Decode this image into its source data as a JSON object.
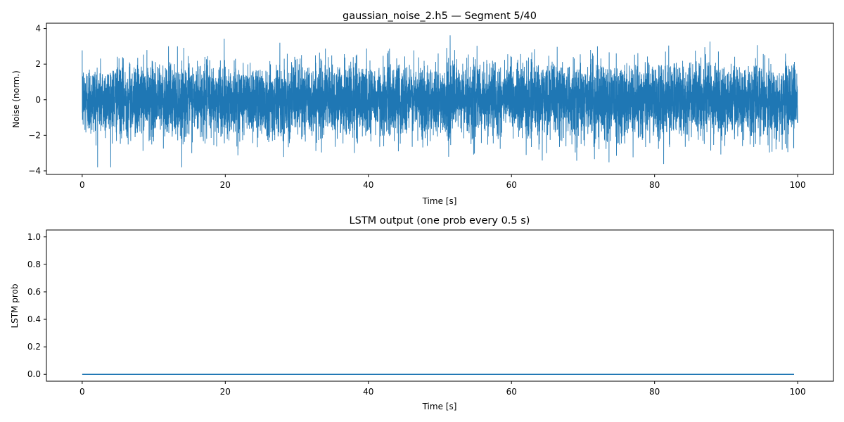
{
  "chart_data": [
    {
      "type": "line",
      "title": "gaussian_noise_2.h5 — Segment 5/40",
      "xlabel": "Time [s]",
      "ylabel": "Noise (norm.)",
      "xlim": [
        -5,
        105
      ],
      "ylim": [
        -4.2,
        4.3
      ],
      "xticks": [
        0,
        20,
        40,
        60,
        80,
        100
      ],
      "yticks": [
        -4,
        -2,
        0,
        2,
        4
      ],
      "grid": false,
      "series": [
        {
          "color": "#1f77b4",
          "description_of_values": "dense gaussian noise signal, roughly zero-mean, unit variance, sampled continuously from 0 to 100 s",
          "x_range": [
            0,
            100
          ],
          "mean": 0,
          "std": 1.0,
          "approx_max": 3.9,
          "approx_min": -3.8
        }
      ]
    },
    {
      "type": "line",
      "title": "LSTM output (one prob every 0.5 s)",
      "xlabel": "Time [s]",
      "ylabel": "LSTM prob",
      "xlim": [
        -5,
        105
      ],
      "ylim": [
        -0.05,
        1.05
      ],
      "xticks": [
        0,
        20,
        40,
        60,
        80,
        100
      ],
      "yticks": [
        0.0,
        0.2,
        0.4,
        0.6,
        0.8,
        1.0
      ],
      "grid": false,
      "series": [
        {
          "color": "#1f77b4",
          "x_start": 0,
          "x_end": 99.5,
          "x_step": 0.5,
          "constant_value": 0.0
        }
      ]
    }
  ],
  "tick_text": {
    "x": [
      "0",
      "20",
      "40",
      "60",
      "80",
      "100"
    ],
    "y_top": [
      "−4",
      "−2",
      "0",
      "2",
      "4"
    ],
    "y_bottom": [
      "0.0",
      "0.2",
      "0.4",
      "0.6",
      "0.8",
      "1.0"
    ]
  }
}
